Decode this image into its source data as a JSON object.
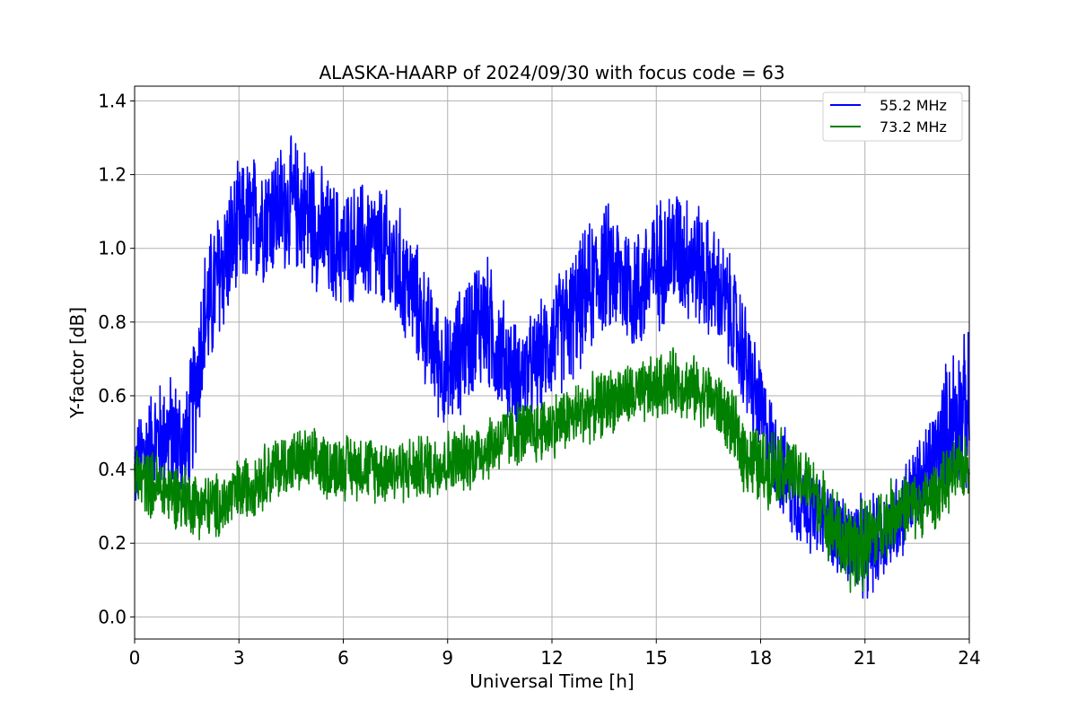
{
  "chart_data": {
    "type": "line",
    "title": "ALASKA-HAARP of 2024/09/30 with focus code = 63",
    "xlabel": "Universal Time [h]",
    "ylabel": "Y-factor [dB]",
    "xlim": [
      0,
      24
    ],
    "ylim": [
      -0.06,
      1.44
    ],
    "xticks": [
      0,
      3,
      6,
      9,
      12,
      15,
      18,
      21,
      24
    ],
    "yticks": [
      0.0,
      0.2,
      0.4,
      0.6,
      0.8,
      1.0,
      1.2,
      1.4
    ],
    "xtick_labels": [
      "0",
      "3",
      "6",
      "9",
      "12",
      "15",
      "18",
      "21",
      "24"
    ],
    "ytick_labels": [
      "0.0",
      "0.2",
      "0.4",
      "0.6",
      "0.8",
      "1.0",
      "1.2",
      "1.4"
    ],
    "grid": true,
    "legend_position": "top-right",
    "series": [
      {
        "name": "55.2 MHz",
        "color": "#0000ff",
        "x": [
          0,
          0.5,
          1,
          1.5,
          2,
          2.5,
          3,
          3.5,
          4,
          4.5,
          5,
          5.5,
          6,
          6.5,
          7,
          7.5,
          8,
          8.5,
          9,
          9.5,
          10,
          10.5,
          11,
          11.5,
          12,
          12.5,
          13,
          13.5,
          14,
          14.5,
          15,
          15.5,
          16,
          16.5,
          17,
          17.5,
          18,
          18.5,
          19,
          19.5,
          20,
          20.5,
          21,
          21.5,
          22,
          22.5,
          23,
          23.5,
          24
        ],
        "mean": [
          0.4,
          0.48,
          0.5,
          0.45,
          0.8,
          0.95,
          1.05,
          1.08,
          1.1,
          1.12,
          1.1,
          1.02,
          1.0,
          1.02,
          1.0,
          0.95,
          0.88,
          0.75,
          0.65,
          0.75,
          0.82,
          0.72,
          0.65,
          0.68,
          0.75,
          0.8,
          0.88,
          0.95,
          0.92,
          0.88,
          0.95,
          1.0,
          0.98,
          0.92,
          0.85,
          0.72,
          0.55,
          0.42,
          0.33,
          0.28,
          0.25,
          0.2,
          0.18,
          0.22,
          0.28,
          0.35,
          0.42,
          0.55,
          0.55
        ],
        "spread": [
          0.14,
          0.16,
          0.18,
          0.2,
          0.22,
          0.22,
          0.2,
          0.2,
          0.2,
          0.2,
          0.2,
          0.2,
          0.18,
          0.18,
          0.2,
          0.2,
          0.18,
          0.18,
          0.18,
          0.2,
          0.22,
          0.18,
          0.16,
          0.16,
          0.18,
          0.2,
          0.2,
          0.2,
          0.2,
          0.2,
          0.2,
          0.2,
          0.2,
          0.18,
          0.18,
          0.18,
          0.16,
          0.14,
          0.14,
          0.12,
          0.12,
          0.14,
          0.16,
          0.14,
          0.14,
          0.14,
          0.18,
          0.22,
          0.24
        ]
      },
      {
        "name": "73.2 MHz",
        "color": "#008000",
        "x": [
          0,
          0.5,
          1,
          1.5,
          2,
          2.5,
          3,
          3.5,
          4,
          4.5,
          5,
          5.5,
          6,
          6.5,
          7,
          7.5,
          8,
          8.5,
          9,
          9.5,
          10,
          10.5,
          11,
          11.5,
          12,
          12.5,
          13,
          13.5,
          14,
          14.5,
          15,
          15.5,
          16,
          16.5,
          17,
          17.5,
          18,
          18.5,
          19,
          19.5,
          20,
          20.5,
          21,
          21.5,
          22,
          22.5,
          23,
          23.5,
          24
        ],
        "mean": [
          0.38,
          0.36,
          0.34,
          0.32,
          0.3,
          0.3,
          0.34,
          0.37,
          0.4,
          0.42,
          0.42,
          0.41,
          0.41,
          0.41,
          0.4,
          0.4,
          0.4,
          0.41,
          0.42,
          0.43,
          0.45,
          0.48,
          0.5,
          0.5,
          0.52,
          0.54,
          0.56,
          0.58,
          0.6,
          0.6,
          0.62,
          0.64,
          0.62,
          0.6,
          0.55,
          0.45,
          0.4,
          0.42,
          0.38,
          0.35,
          0.26,
          0.18,
          0.2,
          0.25,
          0.3,
          0.3,
          0.33,
          0.38,
          0.42
        ],
        "spread": [
          0.1,
          0.1,
          0.1,
          0.1,
          0.1,
          0.1,
          0.1,
          0.1,
          0.1,
          0.1,
          0.1,
          0.1,
          0.1,
          0.1,
          0.1,
          0.1,
          0.1,
          0.1,
          0.1,
          0.1,
          0.1,
          0.1,
          0.1,
          0.1,
          0.1,
          0.1,
          0.1,
          0.1,
          0.1,
          0.1,
          0.1,
          0.1,
          0.1,
          0.1,
          0.1,
          0.12,
          0.12,
          0.12,
          0.1,
          0.1,
          0.12,
          0.14,
          0.14,
          0.12,
          0.1,
          0.1,
          0.1,
          0.1,
          0.1
        ]
      }
    ]
  }
}
